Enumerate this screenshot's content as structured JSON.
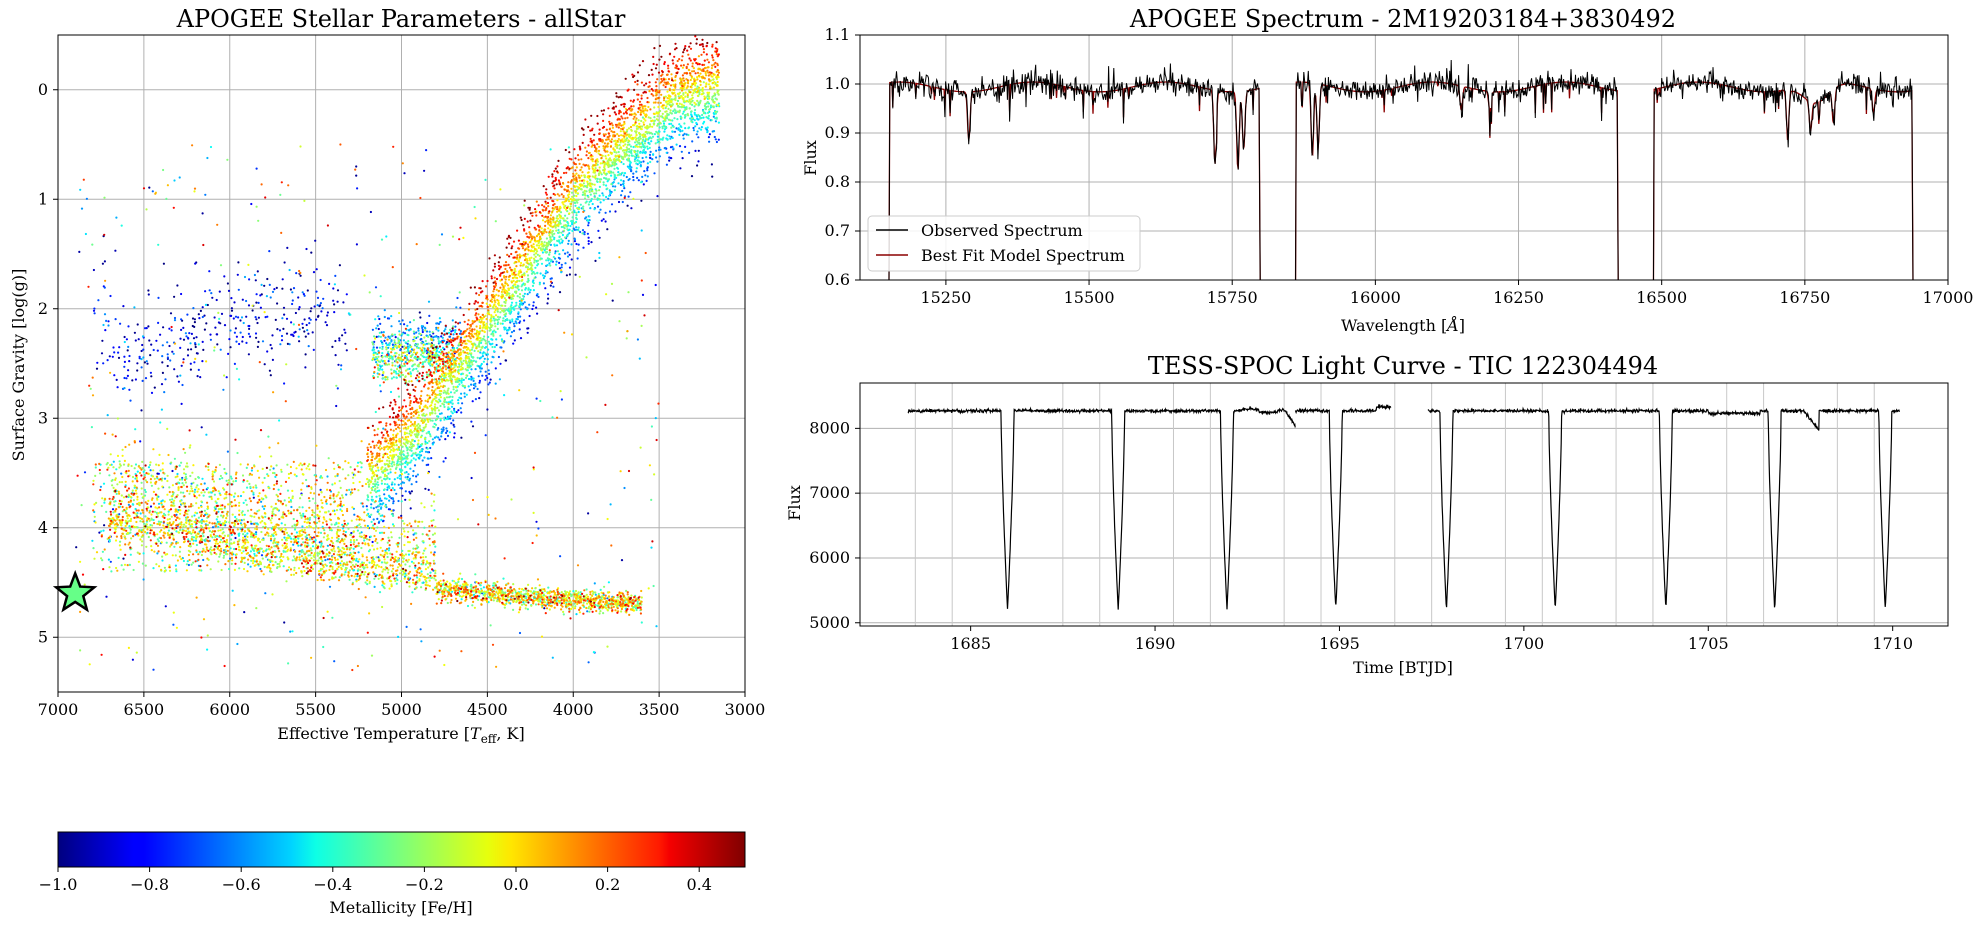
{
  "chart_data": [
    {
      "id": "hr",
      "type": "scatter",
      "title": "APOGEE Stellar Parameters - allStar",
      "xlabel": "Effective Temperature [T_eff, K]",
      "xlabel_pre": "Effective Temperature [",
      "xlabel_T": "T",
      "xlabel_sub": "eff",
      "xlabel_post": ", K]",
      "ylabel": "Surface Gravity [log(g)]",
      "xlim": [
        7000,
        3000
      ],
      "ylim": [
        -0.5,
        5.5
      ],
      "xticks": [
        7000,
        6500,
        6000,
        5500,
        5000,
        4500,
        4000,
        3500,
        3000
      ],
      "yticks": [
        0,
        1,
        2,
        3,
        4,
        5
      ],
      "grid": true,
      "color_by": "Metallicity [Fe/H]",
      "colormap": "jet",
      "clim": [
        -1.0,
        0.5
      ],
      "distribution": {
        "red_giant_branch_ridge": [
          [
            5200,
            3.6
          ],
          [
            4900,
            3.1
          ],
          [
            4600,
            2.4
          ],
          [
            4300,
            1.7
          ],
          [
            4000,
            1.0
          ],
          [
            3700,
            0.5
          ],
          [
            3400,
            0.1
          ],
          [
            3150,
            0.0
          ]
        ],
        "main_sequence_ridge": [
          [
            6700,
            4.05
          ],
          [
            6200,
            4.2
          ],
          [
            5800,
            4.35
          ],
          [
            5400,
            4.45
          ],
          [
            5000,
            4.52
          ],
          [
            4500,
            4.6
          ],
          [
            4000,
            4.66
          ],
          [
            3600,
            4.7
          ]
        ],
        "red_clump": [
          [
            5000,
            2.45
          ],
          [
            4700,
            2.45
          ]
        ],
        "blue_horizontal_branch": [
          [
            6700,
            2.5
          ],
          [
            6200,
            2.2
          ],
          [
            5800,
            2.05
          ],
          [
            5400,
            2.0
          ]
        ]
      },
      "highlighted_star": {
        "teff": 6900,
        "logg": 4.6,
        "color": "#66ff88",
        "marker": "star"
      }
    },
    {
      "id": "spectrum",
      "type": "line",
      "title": "APOGEE Spectrum - 2M19203184+3830492",
      "xlabel": "Wavelength [Å]",
      "xlabel_pre": "Wavelength [",
      "xlabel_A": "Å",
      "xlabel_post": "]",
      "ylabel": "Flux",
      "xlim": [
        15100,
        17000
      ],
      "ylim": [
        0.6,
        1.1
      ],
      "xticks": [
        15250,
        15500,
        15750,
        16000,
        16250,
        16500,
        16750,
        17000
      ],
      "yticks": [
        0.6,
        0.7,
        0.8,
        0.9,
        1.0,
        1.1
      ],
      "grid": true,
      "legend": "lower left",
      "chips": [
        [
          15150,
          15800
        ],
        [
          15860,
          16425
        ],
        [
          16485,
          16940
        ]
      ],
      "series": [
        {
          "name": "Observed Spectrum",
          "color": "#000000",
          "continuum": 1.0,
          "noise": 0.012
        },
        {
          "name": "Best Fit Model Spectrum",
          "color": "#8b0000",
          "continuum": 1.0
        }
      ],
      "absorption_lines": [
        [
          15290,
          0.9
        ],
        [
          15720,
          0.85
        ],
        [
          15760,
          0.84
        ],
        [
          15770,
          0.88
        ],
        [
          15890,
          0.85
        ],
        [
          15900,
          0.87
        ],
        [
          16150,
          0.95
        ],
        [
          16200,
          0.96
        ],
        [
          16440,
          0.94
        ],
        [
          16720,
          0.91
        ],
        [
          16760,
          0.94
        ],
        [
          16800,
          0.93
        ],
        [
          16870,
          0.95
        ]
      ]
    },
    {
      "id": "lightcurve",
      "type": "line",
      "title": "TESS-SPOC Light Curve - TIC 122304494",
      "xlabel": "Time [BTJD]",
      "ylabel": "Flux",
      "xlim": [
        1682,
        1711.5
      ],
      "ylim": [
        4950,
        8700
      ],
      "xticks": [
        1685,
        1690,
        1695,
        1700,
        1705,
        1710
      ],
      "yticks": [
        5000,
        6000,
        7000,
        8000
      ],
      "grid": true,
      "baseline_flux": 8270,
      "segments": [
        [
          1683.3,
          1693.8
        ],
        [
          1693.8,
          1696.4
        ],
        [
          1697.4,
          1710.2
        ]
      ],
      "eclipse_times": [
        1686.0,
        1689.0,
        1691.95,
        1694.9,
        1697.9,
        1700.85,
        1703.85,
        1706.8,
        1709.8
      ],
      "eclipse_min_flux": 5200,
      "eclipse_width_days": 0.35,
      "vertical_markers": [
        1683.5,
        1684.5,
        1687.5,
        1688.5,
        1690.5,
        1691.5,
        1693.5,
        1694.5,
        1696.5,
        1697.5,
        1699.5,
        1700.5,
        1702.5,
        1703.5,
        1705.5,
        1706.5,
        1708.5,
        1709.5
      ]
    }
  ],
  "colorbar": {
    "label": "Metallicity [Fe/H]",
    "ticks": [
      -1.0,
      -0.8,
      -0.6,
      -0.4,
      -0.2,
      0.0,
      0.2,
      0.4
    ],
    "tick_labels": [
      "−1.0",
      "−0.8",
      "−0.6",
      "−0.4",
      "−0.2",
      "0.0",
      "0.2",
      "0.4"
    ],
    "range": [
      -1.0,
      0.5
    ],
    "colormap": "jet"
  }
}
